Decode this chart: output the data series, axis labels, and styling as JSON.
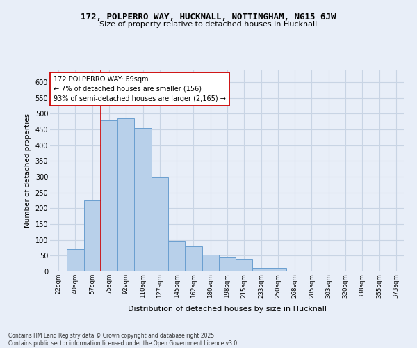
{
  "title1": "172, POLPERRO WAY, HUCKNALL, NOTTINGHAM, NG15 6JW",
  "title2": "Size of property relative to detached houses in Hucknall",
  "xlabel": "Distribution of detached houses by size in Hucknall",
  "ylabel": "Number of detached properties",
  "footer1": "Contains HM Land Registry data © Crown copyright and database right 2025.",
  "footer2": "Contains public sector information licensed under the Open Government Licence v3.0.",
  "categories": [
    "22sqm",
    "40sqm",
    "57sqm",
    "75sqm",
    "92sqm",
    "110sqm",
    "127sqm",
    "145sqm",
    "162sqm",
    "180sqm",
    "198sqm",
    "215sqm",
    "233sqm",
    "250sqm",
    "268sqm",
    "285sqm",
    "303sqm",
    "320sqm",
    "338sqm",
    "355sqm",
    "373sqm"
  ],
  "values": [
    1,
    70,
    225,
    480,
    485,
    455,
    298,
    97,
    80,
    53,
    47,
    40,
    12,
    12,
    1,
    1,
    0,
    0,
    0,
    0,
    0
  ],
  "bar_color": "#b8d0ea",
  "bar_edge_color": "#6a9fd0",
  "grid_color": "#c8d4e4",
  "background_color": "#e8eef8",
  "red_line_x": 2.5,
  "annotation_text": "172 POLPERRO WAY: 69sqm\n← 7% of detached houses are smaller (156)\n93% of semi-detached houses are larger (2,165) →",
  "annotation_box_color": "white",
  "annotation_border_color": "#cc0000",
  "ylim": [
    0,
    640
  ],
  "yticks": [
    0,
    50,
    100,
    150,
    200,
    250,
    300,
    350,
    400,
    450,
    500,
    550,
    600
  ]
}
